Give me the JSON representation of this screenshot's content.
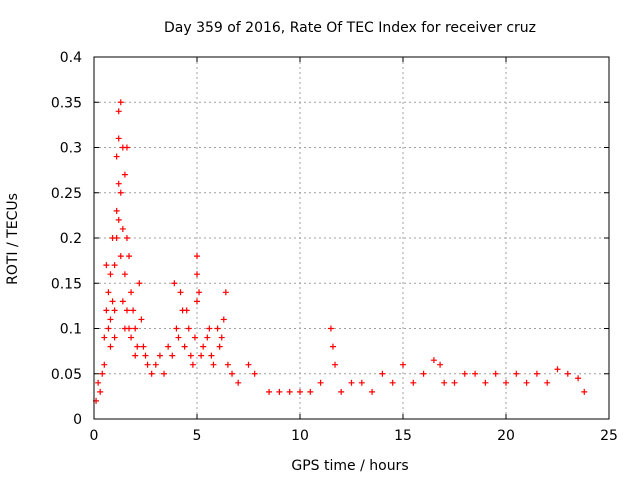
{
  "chart_data": {
    "type": "scatter",
    "title": "Day 359 of 2016, Rate Of TEC Index for receiver cruz",
    "xlabel": "GPS time / hours",
    "ylabel": "ROTI / TECUs",
    "xlim": [
      0,
      25
    ],
    "ylim": [
      0,
      0.4
    ],
    "xticks": [
      0,
      5,
      10,
      15,
      20,
      25
    ],
    "xtick_labels": [
      "0",
      "5",
      "10",
      "15",
      "20",
      "25"
    ],
    "yticks": [
      0,
      0.05,
      0.1,
      0.15,
      0.2,
      0.25,
      0.3,
      0.35,
      0.4
    ],
    "ytick_labels": [
      "0",
      "0.05",
      "0.1",
      "0.15",
      "0.2",
      "0.25",
      "0.3",
      "0.35",
      "0.4"
    ],
    "grid": true,
    "marker": "+",
    "color": "#ff0000",
    "series": [
      {
        "name": "ROTI",
        "points": [
          [
            0.1,
            0.02
          ],
          [
            0.2,
            0.04
          ],
          [
            0.3,
            0.03
          ],
          [
            0.4,
            0.05
          ],
          [
            0.5,
            0.09
          ],
          [
            0.5,
            0.06
          ],
          [
            0.6,
            0.12
          ],
          [
            0.6,
            0.17
          ],
          [
            0.7,
            0.1
          ],
          [
            0.7,
            0.14
          ],
          [
            0.8,
            0.08
          ],
          [
            0.8,
            0.11
          ],
          [
            0.8,
            0.16
          ],
          [
            0.9,
            0.2
          ],
          [
            0.9,
            0.13
          ],
          [
            1.0,
            0.17
          ],
          [
            1.0,
            0.09
          ],
          [
            1.0,
            0.12
          ],
          [
            1.1,
            0.23
          ],
          [
            1.1,
            0.29
          ],
          [
            1.1,
            0.2
          ],
          [
            1.2,
            0.34
          ],
          [
            1.2,
            0.31
          ],
          [
            1.2,
            0.26
          ],
          [
            1.2,
            0.22
          ],
          [
            1.3,
            0.35
          ],
          [
            1.3,
            0.25
          ],
          [
            1.3,
            0.18
          ],
          [
            1.4,
            0.3
          ],
          [
            1.4,
            0.21
          ],
          [
            1.4,
            0.13
          ],
          [
            1.5,
            0.27
          ],
          [
            1.5,
            0.16
          ],
          [
            1.5,
            0.1
          ],
          [
            1.6,
            0.3
          ],
          [
            1.6,
            0.2
          ],
          [
            1.6,
            0.12
          ],
          [
            1.7,
            0.18
          ],
          [
            1.7,
            0.1
          ],
          [
            1.8,
            0.14
          ],
          [
            1.8,
            0.09
          ],
          [
            1.9,
            0.12
          ],
          [
            2.0,
            0.1
          ],
          [
            2.0,
            0.07
          ],
          [
            2.1,
            0.08
          ],
          [
            2.2,
            0.15
          ],
          [
            2.3,
            0.11
          ],
          [
            2.4,
            0.08
          ],
          [
            2.5,
            0.07
          ],
          [
            2.6,
            0.06
          ],
          [
            2.8,
            0.05
          ],
          [
            3.0,
            0.06
          ],
          [
            3.2,
            0.07
          ],
          [
            3.4,
            0.05
          ],
          [
            3.6,
            0.08
          ],
          [
            3.8,
            0.07
          ],
          [
            3.9,
            0.15
          ],
          [
            4.0,
            0.1
          ],
          [
            4.1,
            0.09
          ],
          [
            4.2,
            0.14
          ],
          [
            4.3,
            0.12
          ],
          [
            4.4,
            0.08
          ],
          [
            4.5,
            0.12
          ],
          [
            4.6,
            0.1
          ],
          [
            4.7,
            0.07
          ],
          [
            4.8,
            0.06
          ],
          [
            4.9,
            0.09
          ],
          [
            5.0,
            0.18
          ],
          [
            5.0,
            0.16
          ],
          [
            5.0,
            0.13
          ],
          [
            5.1,
            0.14
          ],
          [
            5.2,
            0.07
          ],
          [
            5.3,
            0.08
          ],
          [
            5.5,
            0.09
          ],
          [
            5.6,
            0.1
          ],
          [
            5.7,
            0.07
          ],
          [
            5.8,
            0.06
          ],
          [
            6.0,
            0.1
          ],
          [
            6.1,
            0.08
          ],
          [
            6.2,
            0.09
          ],
          [
            6.3,
            0.11
          ],
          [
            6.4,
            0.14
          ],
          [
            6.5,
            0.06
          ],
          [
            6.7,
            0.05
          ],
          [
            7.0,
            0.04
          ],
          [
            7.5,
            0.06
          ],
          [
            7.8,
            0.05
          ],
          [
            8.5,
            0.03
          ],
          [
            9.0,
            0.03
          ],
          [
            9.5,
            0.03
          ],
          [
            10.0,
            0.03
          ],
          [
            10.5,
            0.03
          ],
          [
            11.0,
            0.04
          ],
          [
            11.5,
            0.1
          ],
          [
            11.6,
            0.08
          ],
          [
            11.7,
            0.06
          ],
          [
            12.0,
            0.03
          ],
          [
            12.5,
            0.04
          ],
          [
            13.0,
            0.04
          ],
          [
            13.5,
            0.03
          ],
          [
            14.0,
            0.05
          ],
          [
            14.5,
            0.04
          ],
          [
            15.0,
            0.06
          ],
          [
            15.5,
            0.04
          ],
          [
            16.0,
            0.05
          ],
          [
            16.5,
            0.065
          ],
          [
            16.8,
            0.06
          ],
          [
            17.0,
            0.04
          ],
          [
            17.5,
            0.04
          ],
          [
            18.0,
            0.05
          ],
          [
            18.5,
            0.05
          ],
          [
            19.0,
            0.04
          ],
          [
            19.5,
            0.05
          ],
          [
            20.0,
            0.04
          ],
          [
            20.5,
            0.05
          ],
          [
            21.0,
            0.04
          ],
          [
            21.5,
            0.05
          ],
          [
            22.0,
            0.04
          ],
          [
            22.5,
            0.055
          ],
          [
            23.0,
            0.05
          ],
          [
            23.5,
            0.045
          ],
          [
            23.8,
            0.03
          ]
        ]
      }
    ]
  }
}
